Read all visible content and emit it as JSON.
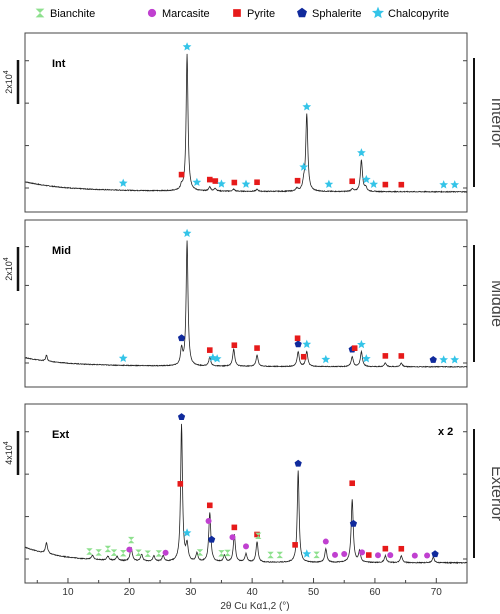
{
  "colors": {
    "bianchite": "#8ee08e",
    "marcasite": "#c040d0",
    "pyrite": "#e61a1a",
    "sphalerite": "#102a9c",
    "chalcopyrite": "#34c4e8",
    "trace": "#222222",
    "frame": "#444444"
  },
  "legend": [
    {
      "key": "bianchite",
      "label": "Bianchite",
      "icon": "bowtie-icon"
    },
    {
      "key": "marcasite",
      "label": "Marcasite",
      "icon": "circle-icon"
    },
    {
      "key": "pyrite",
      "label": "Pyrite",
      "icon": "square-icon"
    },
    {
      "key": "sphalerite",
      "label": "Sphalerite",
      "icon": "pentagon-icon"
    },
    {
      "key": "chalcopyrite",
      "label": "Chalcopyrite",
      "icon": "star-icon"
    }
  ],
  "chart_data": {
    "type": "line",
    "xlabel": "2θ Cu Kα1,2 (°)",
    "xlim": [
      3,
      75
    ],
    "xticks": [
      10,
      20,
      30,
      40,
      50,
      60,
      70
    ],
    "grid": false,
    "legend_position": "top",
    "panels": [
      {
        "label": "Int",
        "side_label": "Interior",
        "scale_label": "2x10",
        "scale_exp": "4",
        "multiplier": "",
        "baseline": 0.06,
        "peaks": [
          {
            "x": 29.4,
            "h": 1.0,
            "w": 0.18
          },
          {
            "x": 48.9,
            "h": 0.56,
            "w": 0.2
          },
          {
            "x": 57.8,
            "h": 0.23,
            "w": 0.2
          },
          {
            "x": 48.4,
            "h": 0.05,
            "w": 0.2
          },
          {
            "x": 28.5,
            "h": 0.03,
            "w": 0.2
          },
          {
            "x": 33.1,
            "h": 0.03,
            "w": 0.2
          },
          {
            "x": 58.5,
            "h": 0.03,
            "w": 0.2
          },
          {
            "x": 47.3,
            "h": 0.02,
            "w": 0.2
          },
          {
            "x": 56.3,
            "h": 0.02,
            "w": 0.2
          },
          {
            "x": 37.0,
            "h": 0.015,
            "w": 0.2
          },
          {
            "x": 40.8,
            "h": 0.015,
            "w": 0.2
          },
          {
            "x": 34.0,
            "h": 0.02,
            "w": 0.2
          }
        ],
        "markers": [
          {
            "x": 29.4,
            "type": "chalcopyrite"
          },
          {
            "x": 48.9,
            "type": "chalcopyrite"
          },
          {
            "x": 57.8,
            "type": "chalcopyrite"
          },
          {
            "x": 48.4,
            "type": "chalcopyrite"
          },
          {
            "x": 58.6,
            "type": "chalcopyrite"
          },
          {
            "x": 19.0,
            "type": "chalcopyrite"
          },
          {
            "x": 31.0,
            "type": "chalcopyrite"
          },
          {
            "x": 35.0,
            "type": "chalcopyrite"
          },
          {
            "x": 39.0,
            "type": "chalcopyrite"
          },
          {
            "x": 52.5,
            "type": "chalcopyrite"
          },
          {
            "x": 59.8,
            "type": "chalcopyrite"
          },
          {
            "x": 71.2,
            "type": "chalcopyrite"
          },
          {
            "x": 73.0,
            "type": "chalcopyrite"
          },
          {
            "x": 28.5,
            "type": "pyrite"
          },
          {
            "x": 33.1,
            "type": "pyrite"
          },
          {
            "x": 37.1,
            "type": "pyrite"
          },
          {
            "x": 40.8,
            "type": "pyrite"
          },
          {
            "x": 47.4,
            "type": "pyrite"
          },
          {
            "x": 56.3,
            "type": "pyrite"
          },
          {
            "x": 61.7,
            "type": "pyrite"
          },
          {
            "x": 64.3,
            "type": "pyrite"
          },
          {
            "x": 34.0,
            "type": "pyrite"
          }
        ]
      },
      {
        "label": "Mid",
        "side_label": "Middle",
        "scale_label": "2x10",
        "scale_exp": "4",
        "multiplier": "",
        "baseline": 0.06,
        "peaks": [
          {
            "x": 6.5,
            "h": 0.05,
            "w": 0.15
          },
          {
            "x": 29.4,
            "h": 1.0,
            "w": 0.18
          },
          {
            "x": 28.5,
            "h": 0.13,
            "w": 0.2
          },
          {
            "x": 33.1,
            "h": 0.07,
            "w": 0.2
          },
          {
            "x": 37.0,
            "h": 0.14,
            "w": 0.2
          },
          {
            "x": 40.8,
            "h": 0.09,
            "w": 0.2
          },
          {
            "x": 47.5,
            "h": 0.12,
            "w": 0.2
          },
          {
            "x": 48.9,
            "h": 0.12,
            "w": 0.2
          },
          {
            "x": 56.3,
            "h": 0.08,
            "w": 0.2
          },
          {
            "x": 57.8,
            "h": 0.12,
            "w": 0.2
          },
          {
            "x": 61.7,
            "h": 0.03,
            "w": 0.2
          },
          {
            "x": 64.3,
            "h": 0.03,
            "w": 0.2
          }
        ],
        "markers": [
          {
            "x": 29.4,
            "type": "chalcopyrite"
          },
          {
            "x": 48.9,
            "type": "chalcopyrite"
          },
          {
            "x": 57.8,
            "type": "chalcopyrite"
          },
          {
            "x": 19.0,
            "type": "chalcopyrite"
          },
          {
            "x": 33.6,
            "type": "chalcopyrite"
          },
          {
            "x": 52.0,
            "type": "chalcopyrite"
          },
          {
            "x": 58.6,
            "type": "chalcopyrite"
          },
          {
            "x": 71.2,
            "type": "chalcopyrite"
          },
          {
            "x": 73.0,
            "type": "chalcopyrite"
          },
          {
            "x": 34.3,
            "type": "chalcopyrite"
          },
          {
            "x": 28.5,
            "type": "sphalerite"
          },
          {
            "x": 47.5,
            "type": "sphalerite"
          },
          {
            "x": 56.3,
            "type": "sphalerite"
          },
          {
            "x": 69.5,
            "type": "sphalerite"
          },
          {
            "x": 33.1,
            "type": "pyrite"
          },
          {
            "x": 37.1,
            "type": "pyrite"
          },
          {
            "x": 40.8,
            "type": "pyrite"
          },
          {
            "x": 47.4,
            "type": "pyrite"
          },
          {
            "x": 48.4,
            "type": "pyrite"
          },
          {
            "x": 56.7,
            "type": "pyrite"
          },
          {
            "x": 61.7,
            "type": "pyrite"
          },
          {
            "x": 64.3,
            "type": "pyrite"
          }
        ]
      },
      {
        "label": "Ext",
        "side_label": "Exterior",
        "scale_label": "4x10",
        "scale_exp": "4",
        "multiplier": "x 2",
        "baseline": 0.1,
        "peaks": [
          {
            "x": 6.5,
            "h": 0.08,
            "w": 0.2
          },
          {
            "x": 14.0,
            "h": 0.03,
            "w": 0.2
          },
          {
            "x": 16.5,
            "h": 0.03,
            "w": 0.2
          },
          {
            "x": 18.0,
            "h": 0.03,
            "w": 0.2
          },
          {
            "x": 20.3,
            "h": 0.1,
            "w": 0.2
          },
          {
            "x": 22.0,
            "h": 0.05,
            "w": 0.2
          },
          {
            "x": 24.0,
            "h": 0.04,
            "w": 0.2
          },
          {
            "x": 25.5,
            "h": 0.04,
            "w": 0.2
          },
          {
            "x": 28.5,
            "h": 1.0,
            "w": 0.18
          },
          {
            "x": 29.4,
            "h": 0.12,
            "w": 0.2
          },
          {
            "x": 31.0,
            "h": 0.06,
            "w": 0.2
          },
          {
            "x": 33.1,
            "h": 0.36,
            "w": 0.2
          },
          {
            "x": 35.5,
            "h": 0.05,
            "w": 0.2
          },
          {
            "x": 37.1,
            "h": 0.2,
            "w": 0.2
          },
          {
            "x": 39.0,
            "h": 0.06,
            "w": 0.2
          },
          {
            "x": 40.8,
            "h": 0.15,
            "w": 0.2
          },
          {
            "x": 47.5,
            "h": 0.67,
            "w": 0.18
          },
          {
            "x": 52.0,
            "h": 0.1,
            "w": 0.2
          },
          {
            "x": 56.3,
            "h": 0.46,
            "w": 0.2
          },
          {
            "x": 57.5,
            "h": 0.08,
            "w": 0.2
          },
          {
            "x": 61.7,
            "h": 0.05,
            "w": 0.2
          },
          {
            "x": 64.3,
            "h": 0.05,
            "w": 0.2
          },
          {
            "x": 69.5,
            "h": 0.04,
            "w": 0.2
          }
        ],
        "markers": [
          {
            "x": 28.5,
            "type": "sphalerite"
          },
          {
            "x": 47.5,
            "type": "sphalerite"
          },
          {
            "x": 33.4,
            "type": "sphalerite"
          },
          {
            "x": 56.5,
            "type": "sphalerite"
          },
          {
            "x": 69.8,
            "type": "sphalerite"
          },
          {
            "x": 28.3,
            "type": "pyrite"
          },
          {
            "x": 33.1,
            "type": "pyrite"
          },
          {
            "x": 37.1,
            "type": "pyrite"
          },
          {
            "x": 40.8,
            "type": "pyrite"
          },
          {
            "x": 47.0,
            "type": "pyrite"
          },
          {
            "x": 56.3,
            "type": "pyrite"
          },
          {
            "x": 59.0,
            "type": "pyrite"
          },
          {
            "x": 61.7,
            "type": "pyrite"
          },
          {
            "x": 64.3,
            "type": "pyrite"
          },
          {
            "x": 29.4,
            "type": "chalcopyrite"
          },
          {
            "x": 48.9,
            "type": "chalcopyrite"
          },
          {
            "x": 20.3,
            "type": "bianchite"
          },
          {
            "x": 13.5,
            "type": "bianchite"
          },
          {
            "x": 15.0,
            "type": "bianchite"
          },
          {
            "x": 16.5,
            "type": "bianchite"
          },
          {
            "x": 17.5,
            "type": "bianchite"
          },
          {
            "x": 19.0,
            "type": "bianchite"
          },
          {
            "x": 21.5,
            "type": "bianchite"
          },
          {
            "x": 23.0,
            "type": "bianchite"
          },
          {
            "x": 24.8,
            "type": "bianchite"
          },
          {
            "x": 31.5,
            "type": "bianchite"
          },
          {
            "x": 35.0,
            "type": "bianchite"
          },
          {
            "x": 36.0,
            "type": "bianchite"
          },
          {
            "x": 41.0,
            "type": "bianchite"
          },
          {
            "x": 43.0,
            "type": "bianchite"
          },
          {
            "x": 44.5,
            "type": "bianchite"
          },
          {
            "x": 50.5,
            "type": "bianchite"
          },
          {
            "x": 20.0,
            "type": "marcasite"
          },
          {
            "x": 25.9,
            "type": "marcasite"
          },
          {
            "x": 32.9,
            "type": "marcasite"
          },
          {
            "x": 36.8,
            "type": "marcasite"
          },
          {
            "x": 39.0,
            "type": "marcasite"
          },
          {
            "x": 52.0,
            "type": "marcasite"
          },
          {
            "x": 53.5,
            "type": "marcasite"
          },
          {
            "x": 55.0,
            "type": "marcasite"
          },
          {
            "x": 57.9,
            "type": "marcasite"
          },
          {
            "x": 60.5,
            "type": "marcasite"
          },
          {
            "x": 62.5,
            "type": "marcasite"
          },
          {
            "x": 66.5,
            "type": "marcasite"
          },
          {
            "x": 68.5,
            "type": "marcasite"
          }
        ]
      }
    ]
  }
}
